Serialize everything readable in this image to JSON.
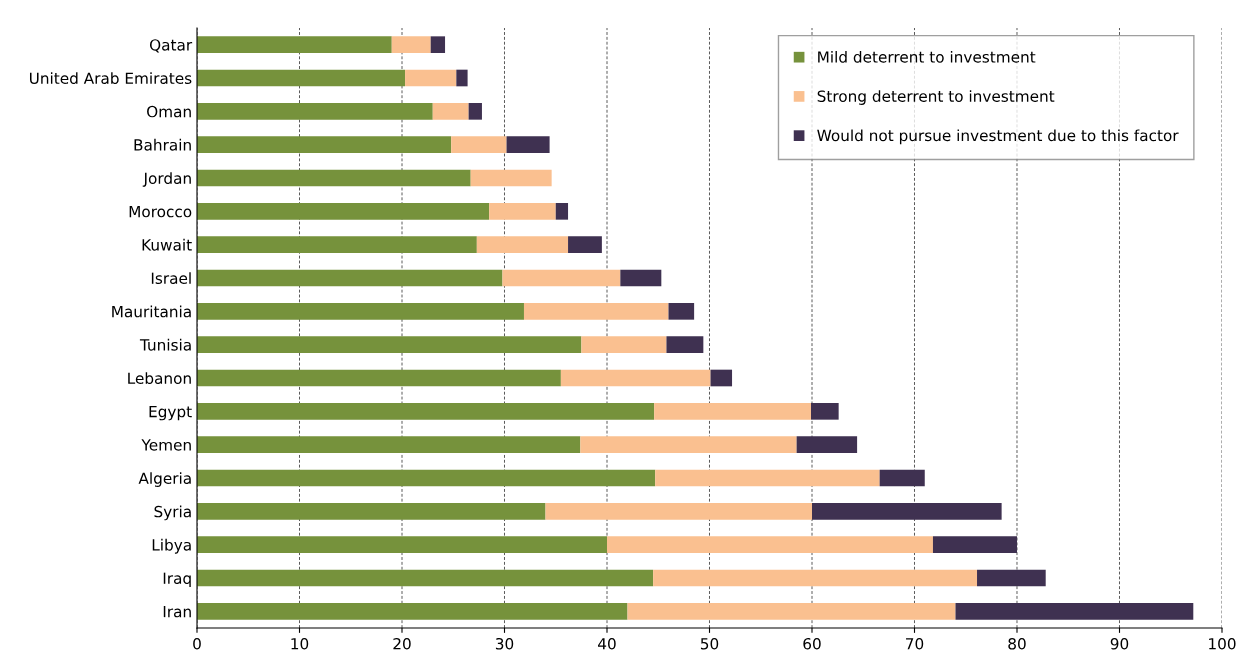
{
  "chart_data": {
    "type": "bar",
    "orientation": "horizontal",
    "stacked": true,
    "categories": [
      "Qatar",
      "United Arab Emirates",
      "Oman",
      "Bahrain",
      "Jordan",
      "Morocco",
      "Kuwait",
      "Israel",
      "Mauritania",
      "Tunisia",
      "Lebanon",
      "Egypt",
      "Yemen",
      "Algeria",
      "Syria",
      "Libya",
      "Iraq",
      "Iran"
    ],
    "series": [
      {
        "name": "Mild deterrent to investment",
        "color": "#76923c",
        "values": [
          19.0,
          20.3,
          23.0,
          24.8,
          26.7,
          28.5,
          27.3,
          29.8,
          31.9,
          37.5,
          35.5,
          44.6,
          37.4,
          44.7,
          34.0,
          40.0,
          44.5,
          42.0
        ]
      },
      {
        "name": "Strong deterrent to investment",
        "color": "#fac090",
        "values": [
          3.8,
          5.0,
          3.5,
          5.4,
          7.9,
          6.5,
          8.9,
          11.5,
          14.1,
          8.3,
          14.6,
          15.3,
          21.1,
          21.9,
          26.0,
          31.8,
          31.6,
          32.0
        ]
      },
      {
        "name": "Would not pursue investment due to this factor",
        "color": "#3f3151",
        "values": [
          1.4,
          1.1,
          1.3,
          4.2,
          0,
          1.2,
          3.3,
          4.0,
          2.5,
          3.6,
          2.1,
          2.7,
          5.9,
          4.4,
          18.5,
          8.2,
          6.7,
          23.2
        ]
      }
    ],
    "xlim": [
      0,
      100
    ],
    "xticks": [
      0,
      10,
      20,
      30,
      40,
      50,
      60,
      70,
      80,
      90,
      100
    ],
    "grid": "x",
    "legend": "top right"
  }
}
